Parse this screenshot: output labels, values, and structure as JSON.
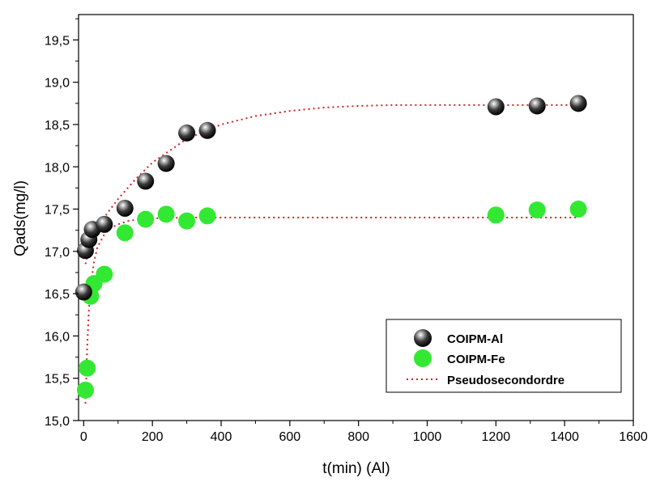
{
  "chart_data": {
    "type": "scatter",
    "title": "",
    "xlabel": "t(min) (Al)",
    "ylabel": "Qads(mg/l)",
    "xlim": [
      -15,
      1600
    ],
    "ylim": [
      15.0,
      19.8
    ],
    "x_ticks": [
      0,
      200,
      400,
      600,
      800,
      1000,
      1200,
      1400,
      1600
    ],
    "y_ticks": [
      15.0,
      15.5,
      16.0,
      16.5,
      17.0,
      17.5,
      18.0,
      18.5,
      19.0,
      19.5
    ],
    "x_tick_labels": [
      "0",
      "200",
      "400",
      "600",
      "800",
      "1000",
      "1200",
      "1400",
      "1600"
    ],
    "y_tick_labels": [
      "15,0",
      "15,5",
      "16,0",
      "16,5",
      "17,0",
      "17,5",
      "18,0",
      "18,5",
      "19,0",
      "19,5"
    ],
    "grid": false,
    "legend_position": "bottom-right",
    "series": [
      {
        "name": "COIPM-Al",
        "marker": "sphere",
        "color": "#1a1a1a",
        "x": [
          0,
          5,
          15,
          25,
          60,
          120,
          180,
          240,
          300,
          360,
          1200,
          1320,
          1440
        ],
        "y": [
          16.52,
          17.01,
          17.14,
          17.26,
          17.32,
          17.51,
          17.83,
          18.04,
          18.4,
          18.43,
          18.71,
          18.72,
          18.75
        ]
      },
      {
        "name": "COIPM-Fe",
        "marker": "circle",
        "color": "#33e833",
        "x": [
          5,
          10,
          20,
          30,
          60,
          120,
          180,
          240,
          300,
          360,
          1200,
          1320,
          1440
        ],
        "y": [
          15.36,
          15.62,
          16.47,
          16.62,
          16.73,
          17.22,
          17.38,
          17.44,
          17.36,
          17.42,
          17.43,
          17.49,
          17.5
        ]
      },
      {
        "name": "Pseudosecondordre",
        "marker": "dotted-line",
        "color": "#d42020",
        "fits": [
          {
            "x": [
              5,
              25,
              50,
              100,
              150,
              200,
              300,
              400,
              500,
              600,
              700,
              800,
              900,
              1000,
              1100,
              1200,
              1300,
              1400,
              1440
            ],
            "y": [
              16.85,
              17.15,
              17.35,
              17.62,
              17.85,
              18.05,
              18.33,
              18.5,
              18.6,
              18.66,
              18.7,
              18.72,
              18.73,
              18.73,
              18.73,
              18.73,
              18.73,
              18.73,
              18.73
            ]
          },
          {
            "x": [
              5,
              10,
              15,
              20,
              30,
              40,
              60,
              80,
              100,
              130,
              160,
              200,
              300,
              400,
              600,
              800,
              1000,
              1200,
              1440
            ],
            "y": [
              15.2,
              15.85,
              16.3,
              16.58,
              16.88,
              17.05,
              17.2,
              17.28,
              17.32,
              17.36,
              17.38,
              17.39,
              17.4,
              17.4,
              17.4,
              17.4,
              17.4,
              17.4,
              17.4
            ]
          }
        ]
      }
    ]
  }
}
